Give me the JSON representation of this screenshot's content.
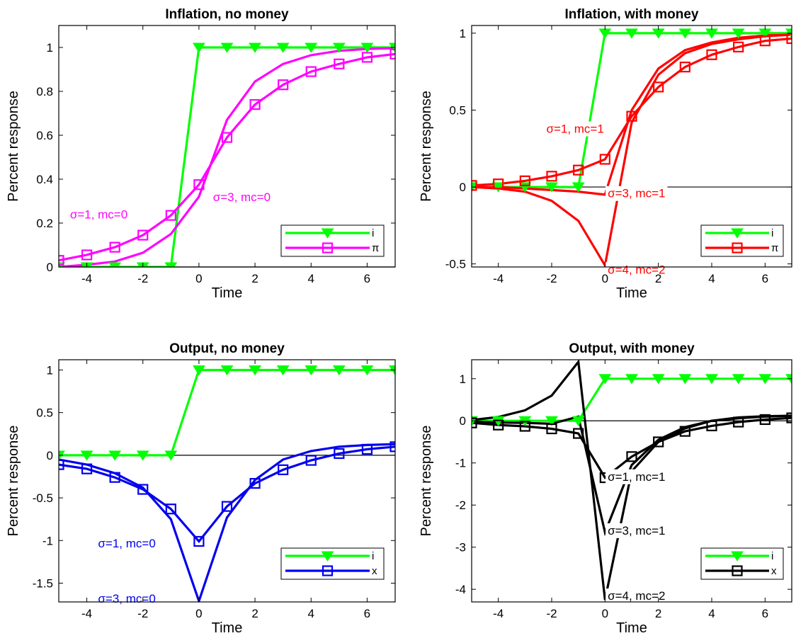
{
  "chart_data": [
    {
      "type": "line",
      "title": "Inflation, no money",
      "xlabel": "Time",
      "ylabel": "Percent response",
      "xlim": [
        -5,
        7
      ],
      "ylim": [
        0,
        1.1
      ],
      "xticks": [
        "-4",
        "-2",
        "0",
        "2",
        "4",
        "6"
      ],
      "yticks": [
        "0",
        "0.2",
        "0.4",
        "0.6",
        "0.8",
        "1"
      ],
      "zero_line": true,
      "x": [
        -5,
        -4,
        -3,
        -2,
        -1,
        0,
        1,
        2,
        3,
        4,
        5,
        6,
        7
      ],
      "series": [
        {
          "name": "i",
          "color": "#00ff00",
          "marker": "triangle",
          "values": [
            0,
            0,
            0,
            0,
            0,
            1,
            1,
            1,
            1,
            1,
            1,
            1,
            1
          ]
        },
        {
          "name": "π",
          "color": "#ff00ff",
          "marker": "square",
          "values": [
            0.03,
            0.055,
            0.09,
            0.145,
            0.235,
            0.375,
            0.59,
            0.74,
            0.83,
            0.89,
            0.925,
            0.955,
            0.97
          ]
        },
        {
          "color": "#ff00ff",
          "marker": "none",
          "values": [
            0,
            0.01,
            0.025,
            0.065,
            0.15,
            0.32,
            0.67,
            0.845,
            0.925,
            0.965,
            0.985,
            0.993,
            0.997
          ]
        }
      ],
      "annotations": [
        {
          "text": "σ=1, mc=0",
          "color": "#ff00ff",
          "x": -4.6,
          "y": 0.24
        },
        {
          "text": "σ=3, mc=0",
          "color": "#ff00ff",
          "x": 0.5,
          "y": 0.32
        }
      ],
      "legend": {
        "position": "bottom-right",
        "entries": [
          "i",
          "π"
        ]
      }
    },
    {
      "type": "line",
      "title": "Inflation, with money",
      "xlabel": "Time",
      "ylabel": "Percent response",
      "xlim": [
        -5,
        7
      ],
      "ylim": [
        -0.52,
        1.05
      ],
      "xticks": [
        "-4",
        "-2",
        "0",
        "2",
        "4",
        "6"
      ],
      "yticks": [
        "-0.5",
        "0",
        "0.5",
        "1"
      ],
      "zero_line": true,
      "x": [
        -5,
        -4,
        -3,
        -2,
        -1,
        0,
        1,
        2,
        3,
        4,
        5,
        6,
        7
      ],
      "series": [
        {
          "name": "i",
          "color": "#00ff00",
          "marker": "triangle",
          "values": [
            0,
            0,
            0,
            0,
            0,
            1,
            1,
            1,
            1,
            1,
            1,
            1,
            1
          ]
        },
        {
          "name": "π",
          "color": "#ff0000",
          "marker": "square",
          "values": [
            0.01,
            0.02,
            0.04,
            0.07,
            0.11,
            0.18,
            0.46,
            0.65,
            0.78,
            0.86,
            0.91,
            0.95,
            0.965
          ]
        },
        {
          "color": "#ff0000",
          "marker": "none",
          "values": [
            0,
            0,
            -0.01,
            -0.02,
            -0.03,
            -0.05,
            0.5,
            0.77,
            0.89,
            0.94,
            0.97,
            0.985,
            0.99
          ]
        },
        {
          "color": "#ff0000",
          "marker": "none",
          "values": [
            0,
            -0.01,
            -0.03,
            -0.09,
            -0.22,
            -0.51,
            0.42,
            0.73,
            0.87,
            0.93,
            0.96,
            0.98,
            0.99
          ]
        }
      ],
      "annotations": [
        {
          "text": "σ=1, mc=1",
          "color": "#ff0000",
          "x": -2.2,
          "y": 0.38
        },
        {
          "text": "σ=3, mc=1",
          "color": "#ff0000",
          "x": 0.1,
          "y": -0.04
        },
        {
          "text": "σ=4, mc=2",
          "color": "#ff0000",
          "x": 0.1,
          "y": -0.535
        }
      ],
      "legend": {
        "position": "bottom-right",
        "entries": [
          "i",
          "π"
        ]
      }
    },
    {
      "type": "line",
      "title": "Output, no money",
      "xlabel": "Time",
      "ylabel": "Percent response",
      "xlim": [
        -5,
        7
      ],
      "ylim": [
        -1.72,
        1.12
      ],
      "xticks": [
        "-4",
        "-2",
        "0",
        "2",
        "4",
        "6"
      ],
      "yticks": [
        "-1.5",
        "-1",
        "-0.5",
        "0",
        "0.5",
        "1"
      ],
      "zero_line": true,
      "x": [
        -5,
        -4,
        -3,
        -2,
        -1,
        0,
        1,
        2,
        3,
        4,
        5,
        6,
        7
      ],
      "series": [
        {
          "name": "i",
          "color": "#00ff00",
          "marker": "triangle",
          "values": [
            0,
            0,
            0,
            0,
            0,
            1,
            1,
            1,
            1,
            1,
            1,
            1,
            1
          ]
        },
        {
          "name": "x",
          "color": "#0000ee",
          "marker": "square",
          "values": [
            -0.11,
            -0.16,
            -0.26,
            -0.4,
            -0.63,
            -1.01,
            -0.6,
            -0.33,
            -0.17,
            -0.06,
            0.02,
            0.07,
            0.1
          ]
        },
        {
          "color": "#0000ee",
          "marker": "none",
          "values": [
            -0.05,
            -0.11,
            -0.21,
            -0.38,
            -0.75,
            -1.71,
            -0.73,
            -0.29,
            -0.05,
            0.05,
            0.1,
            0.12,
            0.13
          ]
        }
      ],
      "annotations": [
        {
          "text": "σ=1, mc=0",
          "color": "#0000ee",
          "x": -3.6,
          "y": -1.03
        },
        {
          "text": "σ=3, mc=0",
          "color": "#0000ee",
          "x": -3.6,
          "y": -1.68
        }
      ],
      "legend": {
        "position": "bottom-right",
        "entries": [
          "i",
          "x"
        ]
      }
    },
    {
      "type": "line",
      "title": "Output, with money",
      "xlabel": "Time",
      "ylabel": "Percent response",
      "xlim": [
        -5,
        7
      ],
      "ylim": [
        -4.3,
        1.45
      ],
      "xticks": [
        "-4",
        "-2",
        "0",
        "2",
        "4",
        "6"
      ],
      "yticks": [
        "-4",
        "-3",
        "-2",
        "-1",
        "0",
        "1"
      ],
      "zero_line": true,
      "x": [
        -5,
        -4,
        -3,
        -2,
        -1,
        0,
        1,
        2,
        3,
        4,
        5,
        6,
        7
      ],
      "series": [
        {
          "name": "i",
          "color": "#00ff00",
          "marker": "triangle",
          "values": [
            0,
            0,
            0,
            0,
            0,
            1,
            1,
            1,
            1,
            1,
            1,
            1,
            1
          ]
        },
        {
          "name": "x",
          "color": "#000000",
          "marker": "square",
          "values": [
            -0.05,
            -0.1,
            -0.13,
            -0.19,
            -0.3,
            -1.35,
            -0.85,
            -0.5,
            -0.25,
            -0.12,
            -0.03,
            0.03,
            0.07
          ]
        },
        {
          "color": "#000000",
          "marker": "none",
          "values": [
            -0.02,
            -0.04,
            -0.05,
            -0.07,
            0.1,
            -2.65,
            -1.05,
            -0.45,
            -0.15,
            0,
            0.08,
            0.11,
            0.12
          ]
        },
        {
          "color": "#000000",
          "marker": "none",
          "values": [
            0.02,
            0.09,
            0.25,
            0.6,
            1.4,
            -4.25,
            -1.2,
            -0.5,
            -0.18,
            0,
            0.06,
            0.1,
            0.12
          ]
        }
      ],
      "annotations": [
        {
          "text": "σ=1, mc=1",
          "color": "#000000",
          "x": 0.1,
          "y": -1.32
        },
        {
          "text": "σ=3, mc=1",
          "color": "#000000",
          "x": 0.1,
          "y": -2.6
        },
        {
          "text": "σ=4, mc=2",
          "color": "#000000",
          "x": 0.1,
          "y": -4.15
        }
      ],
      "legend": {
        "position": "bottom-right",
        "entries": [
          "i",
          "x"
        ]
      }
    }
  ]
}
